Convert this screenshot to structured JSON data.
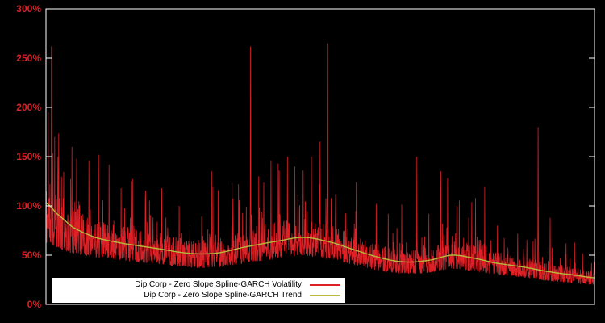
{
  "figure": {
    "background": "#000000",
    "frame_color": "#ffffff"
  },
  "chart_data": {
    "type": "line",
    "title": "",
    "xlabel": "",
    "ylabel": "",
    "ylim": [
      0,
      300
    ],
    "grid": false,
    "tick_label_color": "#dd2127",
    "yticks": [
      {
        "value": 0,
        "label": "0%"
      },
      {
        "value": 50,
        "label": "50%"
      },
      {
        "value": 100,
        "label": "100%"
      },
      {
        "value": 150,
        "label": "150%"
      },
      {
        "value": 200,
        "label": "200%"
      },
      {
        "value": 250,
        "label": "250%"
      },
      {
        "value": 300,
        "label": "300%"
      }
    ],
    "legend": {
      "position": "bottom-left",
      "background": "#ffffff",
      "text_color": "#000000"
    },
    "series": [
      {
        "name": "Dip Corp - Zero Slope Spline-GARCH Volatility",
        "color": "#dd2127",
        "type": "spiky-line",
        "band": {
          "lower_factor": 0.72,
          "upper_factor": 1.28
        },
        "spikes": [
          [
            0.004,
            195
          ],
          [
            0.01,
            262
          ],
          [
            0.016,
            170
          ],
          [
            0.022,
            150
          ],
          [
            0.056,
            148
          ],
          [
            0.078,
            146
          ],
          [
            0.096,
            152
          ],
          [
            0.115,
            142
          ],
          [
            0.137,
            118
          ],
          [
            0.156,
            125
          ],
          [
            0.181,
            108
          ],
          [
            0.211,
            118
          ],
          [
            0.243,
            100
          ],
          [
            0.302,
            135
          ],
          [
            0.314,
            116
          ],
          [
            0.351,
            122
          ],
          [
            0.373,
            262
          ],
          [
            0.388,
            130
          ],
          [
            0.41,
            146
          ],
          [
            0.425,
            136
          ],
          [
            0.44,
            150
          ],
          [
            0.454,
            140
          ],
          [
            0.469,
            136
          ],
          [
            0.484,
            150
          ],
          [
            0.499,
            122
          ],
          [
            0.513,
            265
          ],
          [
            0.528,
            112
          ],
          [
            0.565,
            95
          ],
          [
            0.602,
            102
          ],
          [
            0.624,
            92
          ],
          [
            0.676,
            150
          ],
          [
            0.698,
            92
          ],
          [
            0.72,
            135
          ],
          [
            0.732,
            128
          ],
          [
            0.749,
            100
          ],
          [
            0.771,
            88
          ],
          [
            0.823,
            80
          ],
          [
            0.86,
            72
          ],
          [
            0.897,
            180
          ],
          [
            0.919,
            88
          ],
          [
            0.948,
            62
          ],
          [
            0.978,
            52
          ]
        ]
      },
      {
        "name": "Dip Corp - Zero Slope Spline-GARCH Trend",
        "color": "#b6b93b",
        "type": "smooth-line",
        "points": [
          [
            0.0,
            103
          ],
          [
            0.02,
            92
          ],
          [
            0.05,
            78
          ],
          [
            0.09,
            68
          ],
          [
            0.14,
            62
          ],
          [
            0.2,
            57
          ],
          [
            0.26,
            52
          ],
          [
            0.31,
            52
          ],
          [
            0.36,
            58
          ],
          [
            0.42,
            64
          ],
          [
            0.47,
            68
          ],
          [
            0.52,
            63
          ],
          [
            0.57,
            54
          ],
          [
            0.62,
            46
          ],
          [
            0.66,
            43
          ],
          [
            0.7,
            45
          ],
          [
            0.74,
            50
          ],
          [
            0.78,
            47
          ],
          [
            0.82,
            42
          ],
          [
            0.87,
            38
          ],
          [
            0.92,
            33
          ],
          [
            0.96,
            30
          ],
          [
            1.0,
            27
          ]
        ]
      }
    ],
    "render": {
      "points": 2200,
      "seed": 11
    }
  }
}
